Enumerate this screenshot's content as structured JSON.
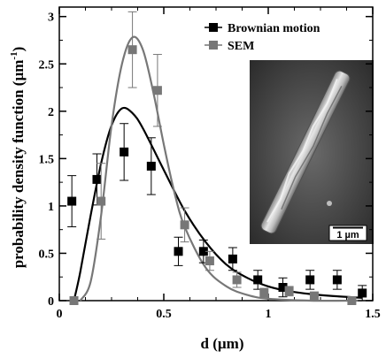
{
  "chart_data": {
    "type": "scatter",
    "xlabel": "d (µm)",
    "ylabel": "probability density function  (µm",
    "ylabel_superscript": "-1",
    "ylabel_close": ")",
    "xlim": [
      0,
      1.5
    ],
    "ylim": [
      0,
      3.1
    ],
    "x_ticks": [
      {
        "value": 0,
        "label": "0"
      },
      {
        "value": 0.5,
        "label": "0.5"
      },
      {
        "value": 1,
        "label": "1"
      },
      {
        "value": 1.5,
        "label": "1.5"
      }
    ],
    "y_ticks": [
      {
        "value": 0,
        "label": "0"
      },
      {
        "value": 0.5,
        "label": "0.5"
      },
      {
        "value": 1,
        "label": "1"
      },
      {
        "value": 1.5,
        "label": "1.5"
      },
      {
        "value": 2,
        "label": "2"
      },
      {
        "value": 2.5,
        "label": "2.5"
      },
      {
        "value": 3,
        "label": "3"
      }
    ],
    "x_minor_step": 0.125,
    "y_minor_step": 0.25,
    "grid": false,
    "legend_position": "top-right",
    "series": [
      {
        "name": "Brownian motion",
        "color": "#000000",
        "marker": "square",
        "points": [
          {
            "x": 0.06,
            "y": 1.05,
            "err": 0.27
          },
          {
            "x": 0.18,
            "y": 1.28,
            "err": 0.27
          },
          {
            "x": 0.31,
            "y": 1.57,
            "err": 0.3
          },
          {
            "x": 0.44,
            "y": 1.42,
            "err": 0.3
          },
          {
            "x": 0.57,
            "y": 0.52,
            "err": 0.15
          },
          {
            "x": 0.69,
            "y": 0.52,
            "err": 0.12
          },
          {
            "x": 0.83,
            "y": 0.44,
            "err": 0.12
          },
          {
            "x": 0.95,
            "y": 0.22,
            "err": 0.1
          },
          {
            "x": 1.07,
            "y": 0.14,
            "err": 0.1
          },
          {
            "x": 1.2,
            "y": 0.22,
            "err": 0.1
          },
          {
            "x": 1.33,
            "y": 0.22,
            "err": 0.1
          },
          {
            "x": 1.45,
            "y": 0.08,
            "err": 0.08
          }
        ],
        "fit": [
          [
            0.07,
            0
          ],
          [
            0.1,
            0.3
          ],
          [
            0.15,
            0.9
          ],
          [
            0.2,
            1.45
          ],
          [
            0.25,
            1.85
          ],
          [
            0.3,
            2.03
          ],
          [
            0.35,
            1.98
          ],
          [
            0.4,
            1.82
          ],
          [
            0.5,
            1.38
          ],
          [
            0.6,
            0.95
          ],
          [
            0.7,
            0.62
          ],
          [
            0.8,
            0.38
          ],
          [
            0.9,
            0.24
          ],
          [
            1.0,
            0.15
          ],
          [
            1.1,
            0.1
          ],
          [
            1.2,
            0.07
          ],
          [
            1.3,
            0.05
          ],
          [
            1.45,
            0.03
          ]
        ]
      },
      {
        "name": "SEM",
        "color": "#777777",
        "marker": "square",
        "points": [
          {
            "x": 0.07,
            "y": 0.0,
            "err": 0
          },
          {
            "x": 0.2,
            "y": 1.05,
            "err": 0.4
          },
          {
            "x": 0.35,
            "y": 2.65,
            "err": 0.4
          },
          {
            "x": 0.47,
            "y": 2.22,
            "err": 0.38
          },
          {
            "x": 0.6,
            "y": 0.8,
            "err": 0.18
          },
          {
            "x": 0.72,
            "y": 0.42,
            "err": 0.1
          },
          {
            "x": 0.85,
            "y": 0.22,
            "err": 0.08
          },
          {
            "x": 0.98,
            "y": 0.08,
            "err": 0.05
          },
          {
            "x": 1.1,
            "y": 0.1,
            "err": 0.05
          },
          {
            "x": 1.22,
            "y": 0.05,
            "err": 0.04
          },
          {
            "x": 1.4,
            "y": 0.0,
            "err": 0
          }
        ],
        "fit": [
          [
            0.1,
            0
          ],
          [
            0.15,
            0.2
          ],
          [
            0.2,
            0.9
          ],
          [
            0.25,
            1.85
          ],
          [
            0.3,
            2.5
          ],
          [
            0.35,
            2.78
          ],
          [
            0.4,
            2.65
          ],
          [
            0.45,
            2.2
          ],
          [
            0.5,
            1.65
          ],
          [
            0.55,
            1.15
          ],
          [
            0.6,
            0.78
          ],
          [
            0.7,
            0.35
          ],
          [
            0.8,
            0.15
          ],
          [
            0.9,
            0.06
          ],
          [
            1.0,
            0.02
          ],
          [
            1.2,
            0.0
          ],
          [
            1.45,
            0.0
          ]
        ]
      }
    ],
    "inset": {
      "description_visual": "SEM micrograph of a rod-shaped particle",
      "scale_bar_label": "1 µm"
    }
  }
}
